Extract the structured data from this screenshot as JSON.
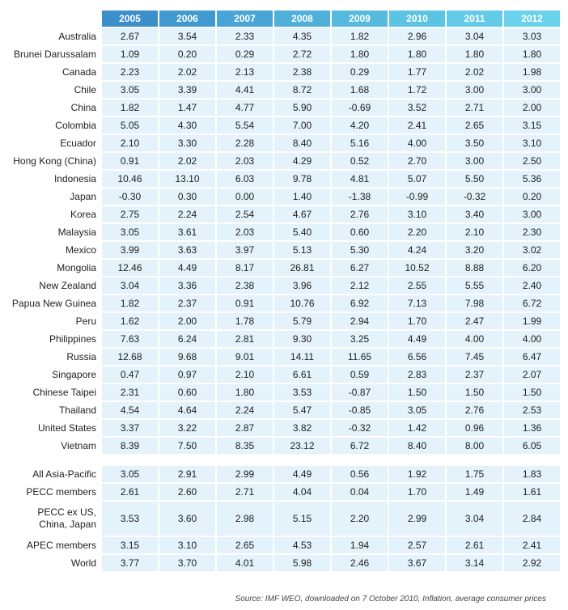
{
  "chart_data": {
    "type": "table",
    "years": [
      "2005",
      "2006",
      "2007",
      "2008",
      "2009",
      "2010",
      "2011",
      "2012"
    ],
    "rows": [
      {
        "name": "Australia",
        "values": [
          "2.67",
          "3.54",
          "2.33",
          "4.35",
          "1.82",
          "2.96",
          "3.04",
          "3.03"
        ]
      },
      {
        "name": "Brunei Darussalam",
        "values": [
          "1.09",
          "0.20",
          "0.29",
          "2.72",
          "1.80",
          "1.80",
          "1.80",
          "1.80"
        ]
      },
      {
        "name": "Canada",
        "values": [
          "2.23",
          "2.02",
          "2.13",
          "2.38",
          "0.29",
          "1.77",
          "2.02",
          "1.98"
        ]
      },
      {
        "name": "Chile",
        "values": [
          "3.05",
          "3.39",
          "4.41",
          "8.72",
          "1.68",
          "1.72",
          "3.00",
          "3.00"
        ]
      },
      {
        "name": "China",
        "values": [
          "1.82",
          "1.47",
          "4.77",
          "5.90",
          "-0.69",
          "3.52",
          "2.71",
          "2.00"
        ]
      },
      {
        "name": "Colombia",
        "values": [
          "5.05",
          "4.30",
          "5.54",
          "7.00",
          "4.20",
          "2.41",
          "2.65",
          "3.15"
        ]
      },
      {
        "name": "Ecuador",
        "values": [
          "2.10",
          "3.30",
          "2.28",
          "8.40",
          "5.16",
          "4.00",
          "3.50",
          "3.10"
        ]
      },
      {
        "name": "Hong Kong (China)",
        "values": [
          "0.91",
          "2.02",
          "2.03",
          "4.29",
          "0.52",
          "2.70",
          "3.00",
          "2.50"
        ]
      },
      {
        "name": "Indonesia",
        "values": [
          "10.46",
          "13.10",
          "6.03",
          "9.78",
          "4.81",
          "5.07",
          "5.50",
          "5.36"
        ]
      },
      {
        "name": "Japan",
        "values": [
          "-0.30",
          "0.30",
          "0.00",
          "1.40",
          "-1.38",
          "-0.99",
          "-0.32",
          "0.20"
        ]
      },
      {
        "name": "Korea",
        "values": [
          "2.75",
          "2.24",
          "2.54",
          "4.67",
          "2.76",
          "3.10",
          "3.40",
          "3.00"
        ]
      },
      {
        "name": "Malaysia",
        "values": [
          "3.05",
          "3.61",
          "2.03",
          "5.40",
          "0.60",
          "2.20",
          "2.10",
          "2.30"
        ]
      },
      {
        "name": "Mexico",
        "values": [
          "3.99",
          "3.63",
          "3.97",
          "5.13",
          "5.30",
          "4.24",
          "3.20",
          "3.02"
        ]
      },
      {
        "name": "Mongolia",
        "values": [
          "12.46",
          "4.49",
          "8.17",
          "26.81",
          "6.27",
          "10.52",
          "8.88",
          "6.20"
        ]
      },
      {
        "name": "New Zealand",
        "values": [
          "3.04",
          "3.36",
          "2.38",
          "3.96",
          "2.12",
          "2.55",
          "5.55",
          "2.40"
        ]
      },
      {
        "name": "Papua New Guinea",
        "values": [
          "1.82",
          "2.37",
          "0.91",
          "10.76",
          "6.92",
          "7.13",
          "7.98",
          "6.72"
        ]
      },
      {
        "name": "Peru",
        "values": [
          "1.62",
          "2.00",
          "1.78",
          "5.79",
          "2.94",
          "1.70",
          "2.47",
          "1.99"
        ]
      },
      {
        "name": "Philippines",
        "values": [
          "7.63",
          "6.24",
          "2.81",
          "9.30",
          "3.25",
          "4.49",
          "4.00",
          "4.00"
        ]
      },
      {
        "name": "Russia",
        "values": [
          "12.68",
          "9.68",
          "9.01",
          "14.11",
          "11.65",
          "6.56",
          "7.45",
          "6.47"
        ]
      },
      {
        "name": "Singapore",
        "values": [
          "0.47",
          "0.97",
          "2.10",
          "6.61",
          "0.59",
          "2.83",
          "2.37",
          "2.07"
        ]
      },
      {
        "name": "Chinese Taipei",
        "values": [
          "2.31",
          "0.60",
          "1.80",
          "3.53",
          "-0.87",
          "1.50",
          "1.50",
          "1.50"
        ]
      },
      {
        "name": "Thailand",
        "values": [
          "4.54",
          "4.64",
          "2.24",
          "5.47",
          "-0.85",
          "3.05",
          "2.76",
          "2.53"
        ]
      },
      {
        "name": "United States",
        "values": [
          "3.37",
          "3.22",
          "2.87",
          "3.82",
          "-0.32",
          "1.42",
          "0.96",
          "1.36"
        ]
      },
      {
        "name": "Vietnam",
        "values": [
          "8.39",
          "7.50",
          "8.35",
          "23.12",
          "6.72",
          "8.40",
          "8.00",
          "6.05"
        ]
      }
    ],
    "aggregates": [
      {
        "name": "All Asia-Pacific",
        "values": [
          "3.05",
          "2.91",
          "2.99",
          "4.49",
          "0.56",
          "1.92",
          "1.75",
          "1.83"
        ]
      },
      {
        "name": "PECC members",
        "values": [
          "2.61",
          "2.60",
          "2.71",
          "4.04",
          "0.04",
          "1.70",
          "1.49",
          "1.61"
        ]
      },
      {
        "name": "PECC ex US, China, Japan",
        "lines": [
          "PECC ex US,",
          "China, Japan"
        ],
        "values": [
          "3.53",
          "3.60",
          "2.98",
          "5.15",
          "2.20",
          "2.99",
          "3.04",
          "2.84"
        ]
      },
      {
        "name": "APEC members",
        "values": [
          "3.15",
          "3.10",
          "2.65",
          "4.53",
          "1.94",
          "2.57",
          "2.61",
          "2.41"
        ]
      },
      {
        "name": "World",
        "values": [
          "3.77",
          "3.70",
          "4.01",
          "5.98",
          "2.46",
          "3.67",
          "3.14",
          "2.92"
        ]
      }
    ],
    "source": "Source: IMF WEO, downloaded on 7 October 2010, Inflation, average consumer prices"
  }
}
